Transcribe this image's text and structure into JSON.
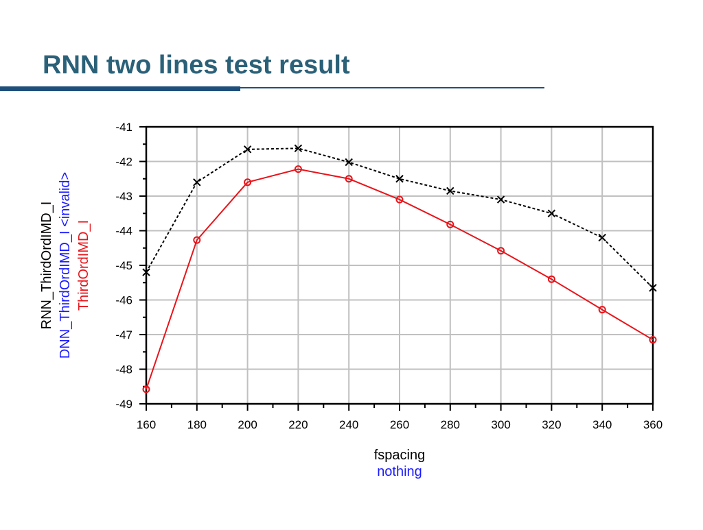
{
  "header": {
    "title": "RNN two lines test result"
  },
  "chart_data": {
    "type": "line",
    "xlabel": "fspacing",
    "xlabel_secondary": "nothing",
    "ylabel_extra": "DNN_ThirdOrdIMD_I <invalid>",
    "x": [
      160,
      180,
      200,
      220,
      240,
      260,
      280,
      300,
      320,
      340,
      360
    ],
    "series": [
      {
        "name": "RNN_ThirdOrdIMD_I",
        "color": "#000000",
        "values": [
          -45.2,
          -42.6,
          -41.65,
          -41.62,
          -42.02,
          -42.5,
          -42.85,
          -43.1,
          -43.5,
          -44.2,
          -45.65
        ]
      },
      {
        "name": "ThirdOrdIMD_I",
        "color": "#e8141a",
        "values": [
          -48.58,
          -44.27,
          -42.6,
          -42.22,
          -42.5,
          -43.1,
          -43.82,
          -44.58,
          -45.4,
          -46.28,
          -47.15
        ]
      }
    ],
    "xlim": [
      160,
      360
    ],
    "xticks": [
      160,
      180,
      200,
      220,
      240,
      260,
      280,
      300,
      320,
      340,
      360
    ],
    "ylim": [
      -49,
      -41
    ],
    "yticks": [
      -49,
      -48,
      -47,
      -46,
      -45,
      -44,
      -43,
      -42,
      -41
    ],
    "grid": true
  }
}
